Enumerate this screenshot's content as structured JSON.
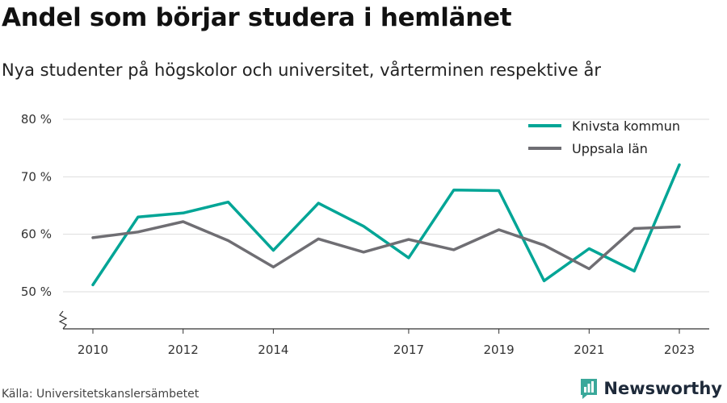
{
  "header": {
    "title": "Andel som börjar studera i hemlänet",
    "subtitle": "Nya studenter på högskolor och universitet, vårterminen respektive år"
  },
  "footer": {
    "source": "Källa: Universitetskanslersämbetet",
    "brand_name": "Newsworthy"
  },
  "colors": {
    "knivsta": "#00a596",
    "uppsala": "#6f6e73",
    "grid": "#dddddd",
    "axis": "#333333"
  },
  "chart_data": {
    "type": "line",
    "x": [
      2010,
      2011,
      2012,
      2013,
      2014,
      2015,
      2016,
      2017,
      2018,
      2019,
      2020,
      2021,
      2022,
      2023
    ],
    "x_tick_values": [
      2010,
      2012,
      2014,
      2017,
      2019,
      2021,
      2023
    ],
    "x_tick_labels": [
      "2010",
      "2012",
      "2014",
      "2017",
      "2019",
      "2021",
      "2023"
    ],
    "y_tick_values": [
      50,
      60,
      70,
      80
    ],
    "y_tick_labels": [
      "50 %",
      "60 %",
      "70 %",
      "80 %"
    ],
    "xlim": [
      2010,
      2023
    ],
    "ylim": [
      50,
      80
    ],
    "axis_break": true,
    "grid": true,
    "legend_position": "top-right",
    "series": [
      {
        "name": "Knivsta kommun",
        "color": "#00a596",
        "values": [
          51.2,
          63.0,
          63.7,
          65.6,
          57.2,
          65.4,
          61.4,
          55.9,
          67.7,
          67.6,
          51.9,
          57.5,
          53.6,
          72.1
        ]
      },
      {
        "name": "Uppsala län",
        "color": "#6f6e73",
        "values": [
          59.4,
          60.4,
          62.2,
          58.9,
          54.3,
          59.2,
          56.9,
          59.1,
          57.3,
          60.8,
          58.1,
          54.0,
          61.0,
          61.3
        ]
      }
    ]
  }
}
